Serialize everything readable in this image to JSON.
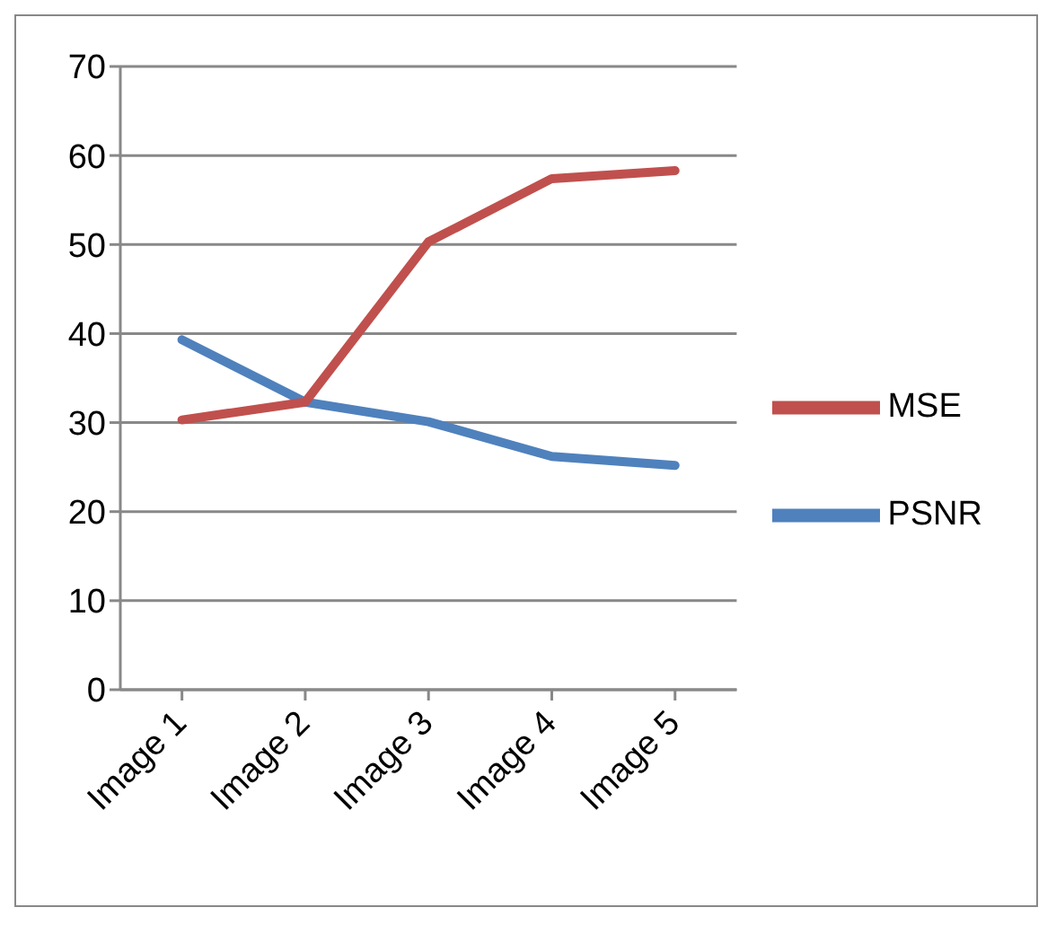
{
  "chart_data": {
    "type": "line",
    "categories": [
      "Image 1",
      "Image 2",
      "Image 3",
      "Image 4",
      "Image 5"
    ],
    "series": [
      {
        "name": "PSNR",
        "color": "#4f81bd",
        "values": [
          39.3,
          32.3,
          30.1,
          26.2,
          25.2
        ]
      },
      {
        "name": "MSE",
        "color": "#c0504d",
        "values": [
          30.3,
          32.3,
          50.3,
          57.4,
          58.3
        ]
      }
    ],
    "ylim": [
      0,
      70
    ],
    "yticks": [
      0,
      10,
      20,
      30,
      40,
      50,
      60,
      70
    ],
    "grid": "y",
    "legend": "right",
    "marker": "none",
    "line_style": "solid"
  }
}
